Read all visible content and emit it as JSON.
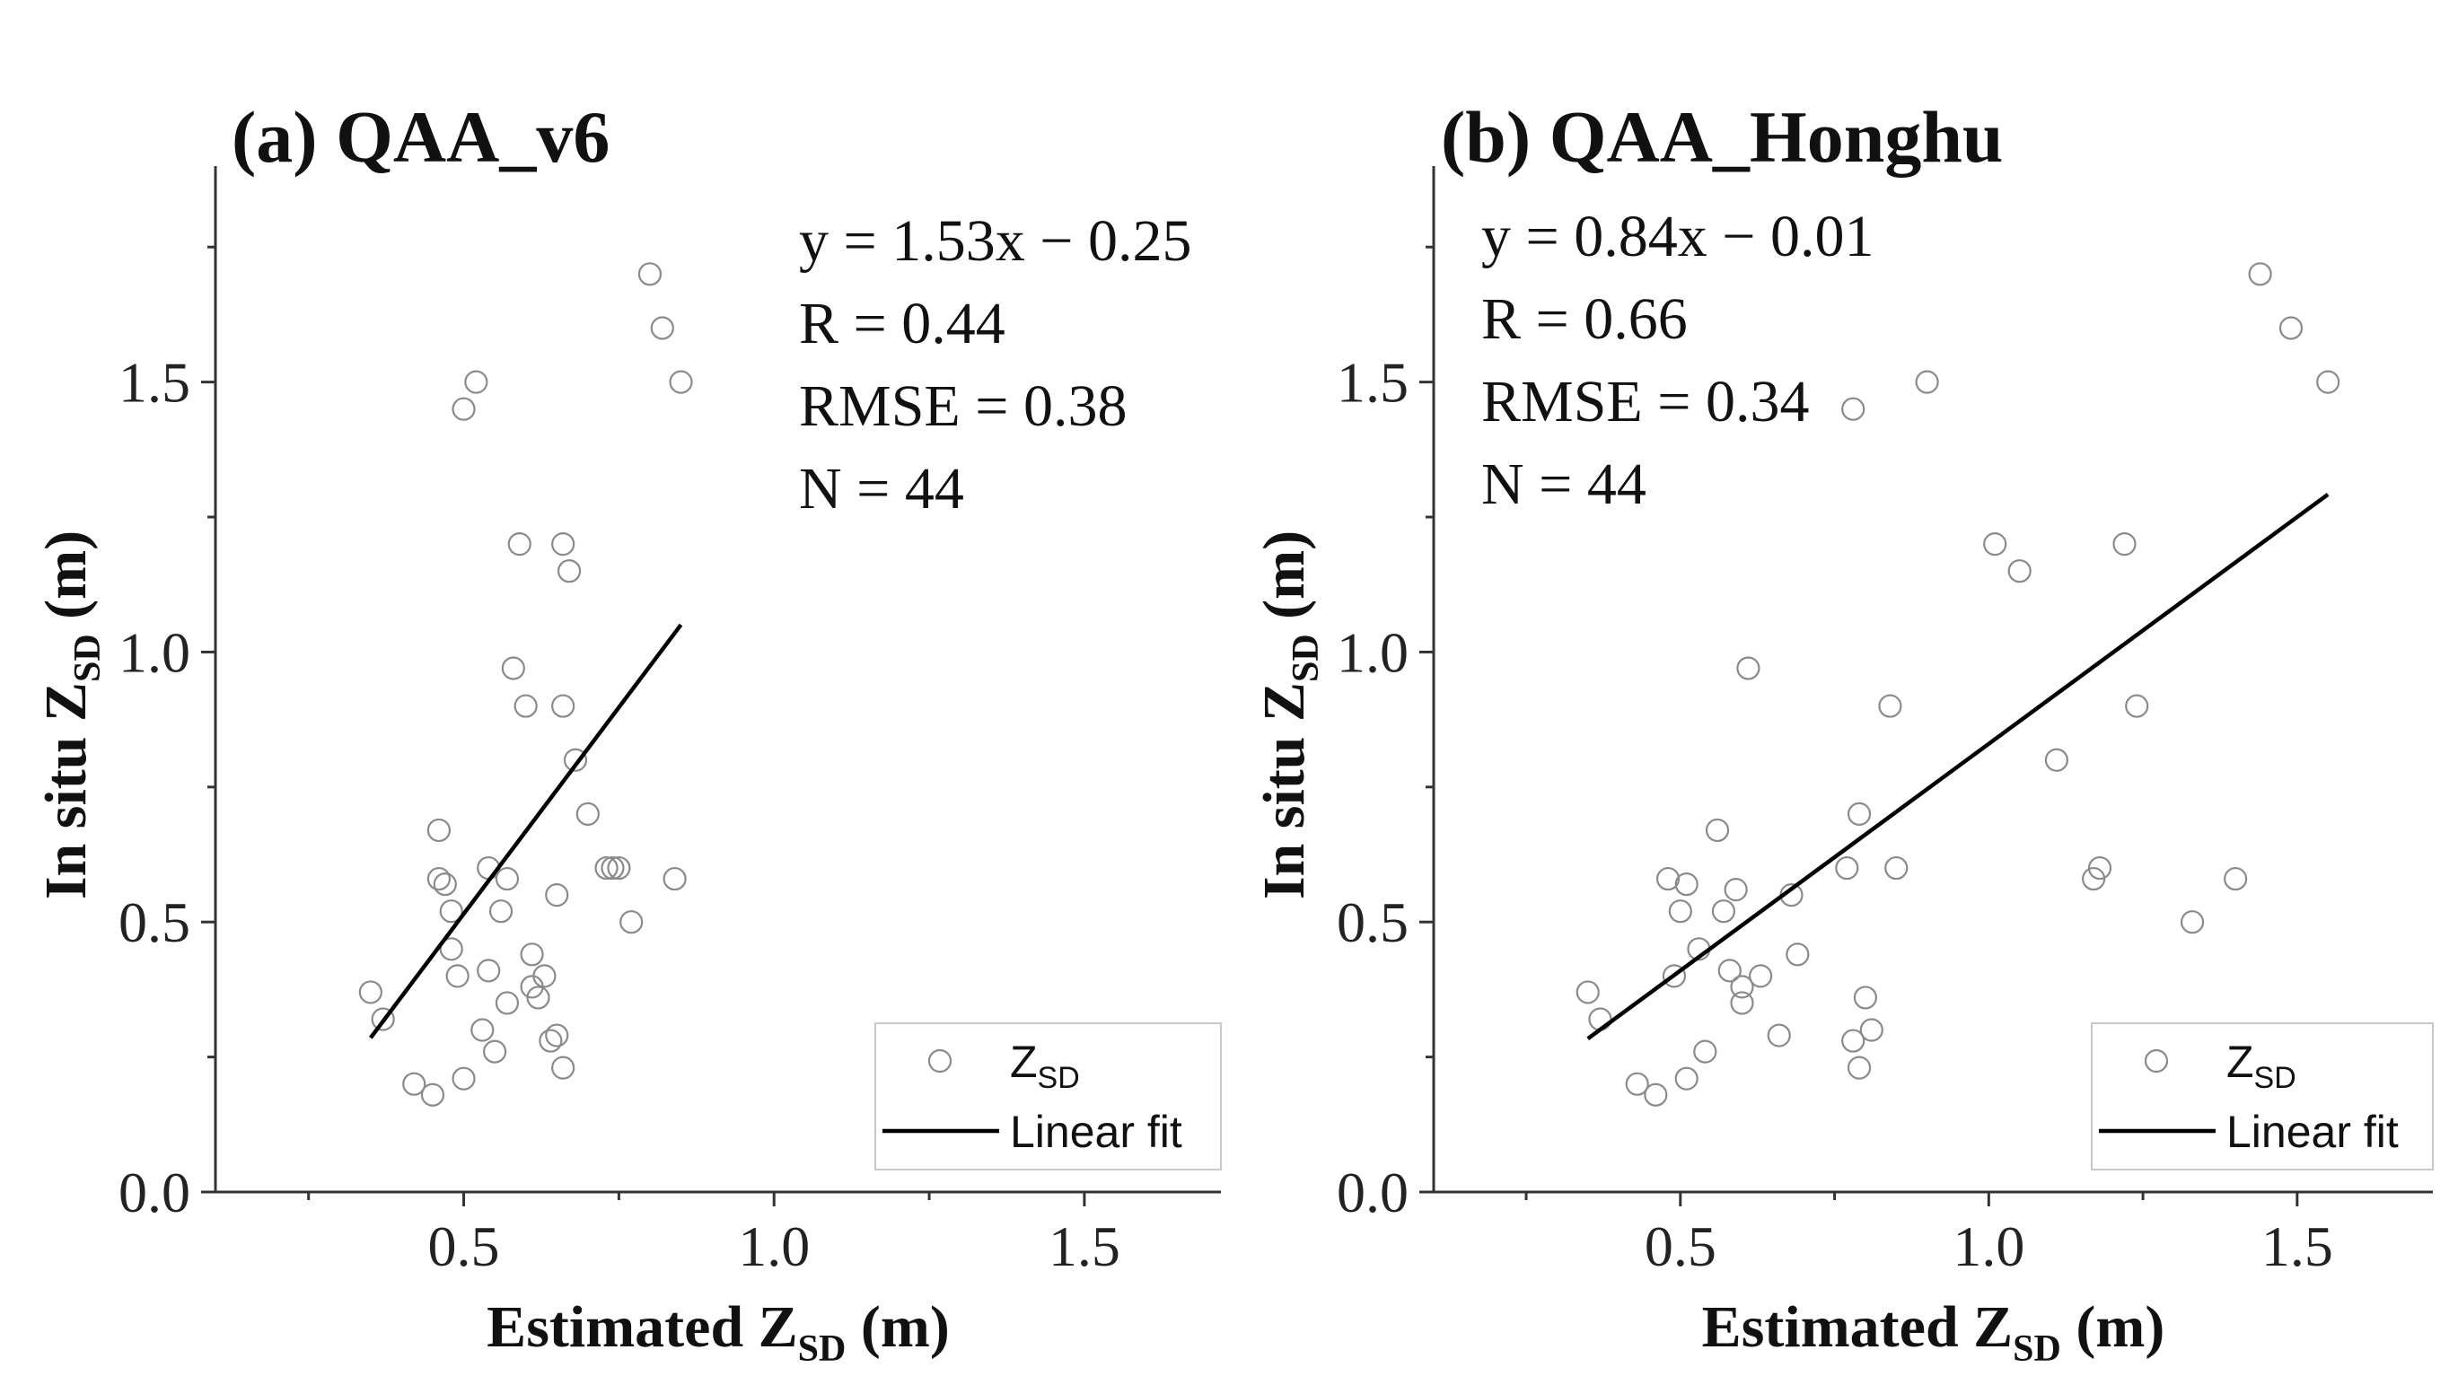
{
  "chart_data": [
    {
      "type": "scatter",
      "title": "(a) QAA_v6",
      "xlabel": {
        "main": "Estimated Z",
        "sub": "SD",
        "unit": " (m)"
      },
      "ylabel": {
        "main": "In situ Z",
        "sub": "SD",
        "unit": " (m)"
      },
      "xlim": [
        0.1,
        1.72
      ],
      "ylim": [
        0.0,
        1.9
      ],
      "xticks": [
        0.5,
        1.0,
        1.5
      ],
      "xtick_labels": [
        "0.5",
        "1.0",
        "1.5"
      ],
      "yticks": [
        0.0,
        0.5,
        1.0,
        1.5
      ],
      "ytick_labels": [
        "0.0",
        "0.5",
        "1.0",
        "1.5"
      ],
      "stats": [
        "y = 1.53x − 0.25",
        "R = 0.44",
        "RMSE = 0.38",
        "N = 44"
      ],
      "legend": {
        "position": "bottom-right",
        "points_main": "Z",
        "points_sub": "SD",
        "line_label": "Linear fit"
      },
      "fit": {
        "slope": 1.53,
        "intercept": -0.25,
        "x_range": [
          0.35,
          0.85
        ]
      },
      "points": [
        [
          0.35,
          0.37
        ],
        [
          0.37,
          0.32
        ],
        [
          0.42,
          0.2
        ],
        [
          0.45,
          0.18
        ],
        [
          0.46,
          0.58
        ],
        [
          0.46,
          0.67
        ],
        [
          0.47,
          0.57
        ],
        [
          0.48,
          0.45
        ],
        [
          0.48,
          0.52
        ],
        [
          0.49,
          0.4
        ],
        [
          0.5,
          1.45
        ],
        [
          0.5,
          0.21
        ],
        [
          0.52,
          1.5
        ],
        [
          0.53,
          0.3
        ],
        [
          0.54,
          0.6
        ],
        [
          0.54,
          0.41
        ],
        [
          0.55,
          0.26
        ],
        [
          0.56,
          0.52
        ],
        [
          0.57,
          0.35
        ],
        [
          0.57,
          0.58
        ],
        [
          0.58,
          0.97
        ],
        [
          0.59,
          1.2
        ],
        [
          0.6,
          0.9
        ],
        [
          0.61,
          0.38
        ],
        [
          0.61,
          0.44
        ],
        [
          0.62,
          0.36
        ],
        [
          0.63,
          0.4
        ],
        [
          0.64,
          0.28
        ],
        [
          0.65,
          0.29
        ],
        [
          0.65,
          0.55
        ],
        [
          0.66,
          0.23
        ],
        [
          0.66,
          0.9
        ],
        [
          0.66,
          1.2
        ],
        [
          0.67,
          1.15
        ],
        [
          0.68,
          0.8
        ],
        [
          0.7,
          0.7
        ],
        [
          0.73,
          0.6
        ],
        [
          0.74,
          0.6
        ],
        [
          0.75,
          0.6
        ],
        [
          0.77,
          0.5
        ],
        [
          0.8,
          1.7
        ],
        [
          0.82,
          1.6
        ],
        [
          0.84,
          0.58
        ],
        [
          0.85,
          1.5
        ]
      ]
    },
    {
      "type": "scatter",
      "title": "(b) QAA_Honghu",
      "xlabel": {
        "main": "Estimated Z",
        "sub": "SD",
        "unit": " (m)"
      },
      "ylabel": {
        "main": "In situ Z",
        "sub": "SD",
        "unit": " (m)"
      },
      "xlim": [
        0.1,
        1.72
      ],
      "ylim": [
        0.0,
        1.9
      ],
      "xticks": [
        0.5,
        1.0,
        1.5
      ],
      "xtick_labels": [
        "0.5",
        "1.0",
        "1.5"
      ],
      "yticks": [
        0.0,
        0.5,
        1.0,
        1.5
      ],
      "ytick_labels": [
        "0.0",
        "0.5",
        "1.0",
        "1.5"
      ],
      "stats": [
        "y = 0.84x − 0.01",
        "R = 0.66",
        "RMSE = 0.34",
        "N = 44"
      ],
      "legend": {
        "position": "bottom-right",
        "points_main": "Z",
        "points_sub": "SD",
        "line_label": "Linear fit"
      },
      "fit": {
        "slope": 0.84,
        "intercept": -0.01,
        "x_range": [
          0.35,
          1.55
        ]
      },
      "points": [
        [
          0.35,
          0.37
        ],
        [
          0.37,
          0.32
        ],
        [
          0.43,
          0.2
        ],
        [
          0.46,
          0.18
        ],
        [
          0.48,
          0.58
        ],
        [
          0.49,
          0.4
        ],
        [
          0.5,
          0.52
        ],
        [
          0.51,
          0.57
        ],
        [
          0.51,
          0.21
        ],
        [
          0.53,
          0.45
        ],
        [
          0.54,
          0.26
        ],
        [
          0.56,
          0.67
        ],
        [
          0.57,
          0.52
        ],
        [
          0.58,
          0.41
        ],
        [
          0.59,
          0.56
        ],
        [
          0.6,
          0.35
        ],
        [
          0.6,
          0.38
        ],
        [
          0.61,
          0.97
        ],
        [
          0.63,
          0.4
        ],
        [
          0.66,
          0.29
        ],
        [
          0.68,
          0.55
        ],
        [
          0.69,
          0.44
        ],
        [
          0.77,
          0.6
        ],
        [
          0.78,
          0.28
        ],
        [
          0.78,
          1.45
        ],
        [
          0.79,
          0.23
        ],
        [
          0.79,
          0.7
        ],
        [
          0.8,
          0.36
        ],
        [
          0.81,
          0.3
        ],
        [
          0.84,
          0.9
        ],
        [
          0.85,
          0.6
        ],
        [
          0.9,
          1.5
        ],
        [
          1.01,
          1.2
        ],
        [
          1.05,
          1.15
        ],
        [
          1.11,
          0.8
        ],
        [
          1.17,
          0.58
        ],
        [
          1.18,
          0.6
        ],
        [
          1.22,
          1.2
        ],
        [
          1.24,
          0.9
        ],
        [
          1.33,
          0.5
        ],
        [
          1.4,
          0.58
        ],
        [
          1.44,
          1.7
        ],
        [
          1.49,
          1.6
        ],
        [
          1.55,
          1.5
        ]
      ]
    }
  ]
}
